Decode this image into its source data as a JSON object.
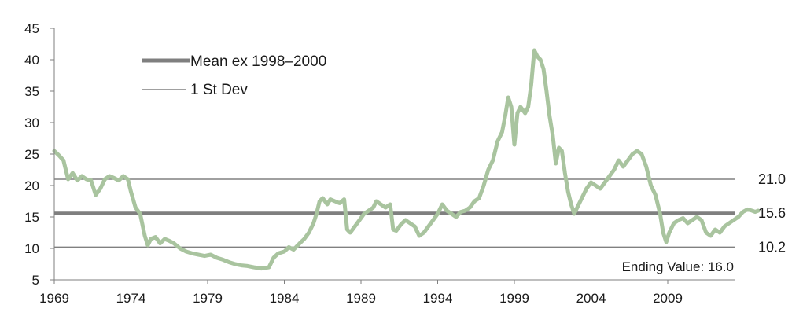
{
  "chart_data": {
    "type": "line",
    "title": "",
    "xlabel": "",
    "ylabel": "",
    "xlim": [
      1969,
      2013.8
    ],
    "ylim": [
      5,
      45
    ],
    "y_ticks": [
      5,
      10,
      15,
      20,
      25,
      30,
      35,
      40,
      45
    ],
    "x_ticks": [
      1969,
      1974,
      1979,
      1984,
      1989,
      1994,
      1999,
      2004,
      2009
    ],
    "grid": false,
    "legend_position": "top-left",
    "legend": [
      {
        "label": "Mean ex 1998–2000",
        "style": "thick-gray-line"
      },
      {
        "label": "1 St Dev",
        "style": "thin-gray-line"
      }
    ],
    "reference_lines": [
      {
        "name": "mean",
        "value": 15.6,
        "label": "15.6",
        "color": "#7f7f7f",
        "width": "thick"
      },
      {
        "name": "plus-1-sd",
        "value": 21.0,
        "label": "21.0",
        "color": "#808080",
        "width": "thin"
      },
      {
        "name": "minus-1-sd",
        "value": 10.2,
        "label": "10.2",
        "color": "#808080",
        "width": "thin"
      }
    ],
    "annotation": "Ending Value: 16.0",
    "series": [
      {
        "color": "#a9c49f",
        "points": [
          [
            1969.0,
            25.5
          ],
          [
            1969.3,
            24.8
          ],
          [
            1969.6,
            24.0
          ],
          [
            1969.9,
            21.0
          ],
          [
            1970.2,
            22.0
          ],
          [
            1970.5,
            20.8
          ],
          [
            1970.8,
            21.5
          ],
          [
            1971.1,
            21.0
          ],
          [
            1971.4,
            20.8
          ],
          [
            1971.7,
            18.5
          ],
          [
            1972.0,
            19.5
          ],
          [
            1972.3,
            21.0
          ],
          [
            1972.6,
            21.5
          ],
          [
            1972.9,
            21.2
          ],
          [
            1973.2,
            20.8
          ],
          [
            1973.5,
            21.5
          ],
          [
            1973.8,
            21.0
          ],
          [
            1974.0,
            19.0
          ],
          [
            1974.3,
            16.5
          ],
          [
            1974.6,
            15.5
          ],
          [
            1974.9,
            12.0
          ],
          [
            1975.1,
            10.5
          ],
          [
            1975.3,
            11.5
          ],
          [
            1975.6,
            11.8
          ],
          [
            1975.9,
            10.8
          ],
          [
            1976.2,
            11.5
          ],
          [
            1976.5,
            11.2
          ],
          [
            1976.8,
            10.8
          ],
          [
            1977.2,
            10.0
          ],
          [
            1977.6,
            9.5
          ],
          [
            1978.0,
            9.2
          ],
          [
            1978.4,
            9.0
          ],
          [
            1978.8,
            8.8
          ],
          [
            1979.2,
            9.0
          ],
          [
            1979.6,
            8.5
          ],
          [
            1980.0,
            8.2
          ],
          [
            1980.4,
            7.8
          ],
          [
            1980.8,
            7.5
          ],
          [
            1981.2,
            7.3
          ],
          [
            1981.6,
            7.2
          ],
          [
            1982.0,
            7.0
          ],
          [
            1982.5,
            6.8
          ],
          [
            1983.0,
            7.0
          ],
          [
            1983.3,
            8.5
          ],
          [
            1983.6,
            9.2
          ],
          [
            1984.0,
            9.5
          ],
          [
            1984.3,
            10.2
          ],
          [
            1984.6,
            9.8
          ],
          [
            1985.0,
            10.8
          ],
          [
            1985.3,
            11.5
          ],
          [
            1985.6,
            12.5
          ],
          [
            1985.9,
            14.0
          ],
          [
            1986.1,
            15.5
          ],
          [
            1986.3,
            17.5
          ],
          [
            1986.5,
            18.0
          ],
          [
            1986.8,
            17.0
          ],
          [
            1987.0,
            17.8
          ],
          [
            1987.3,
            17.5
          ],
          [
            1987.6,
            17.2
          ],
          [
            1987.9,
            17.8
          ],
          [
            1988.1,
            13.0
          ],
          [
            1988.3,
            12.5
          ],
          [
            1988.6,
            13.5
          ],
          [
            1988.9,
            14.5
          ],
          [
            1989.2,
            15.5
          ],
          [
            1989.5,
            16.0
          ],
          [
            1989.8,
            16.5
          ],
          [
            1990.0,
            17.5
          ],
          [
            1990.3,
            17.0
          ],
          [
            1990.6,
            16.5
          ],
          [
            1990.9,
            17.0
          ],
          [
            1991.1,
            13.0
          ],
          [
            1991.3,
            12.8
          ],
          [
            1991.6,
            13.8
          ],
          [
            1991.9,
            14.5
          ],
          [
            1992.2,
            14.0
          ],
          [
            1992.5,
            13.5
          ],
          [
            1992.8,
            12.0
          ],
          [
            1993.1,
            12.5
          ],
          [
            1993.4,
            13.5
          ],
          [
            1993.7,
            14.5
          ],
          [
            1994.0,
            15.5
          ],
          [
            1994.3,
            17.0
          ],
          [
            1994.6,
            16.0
          ],
          [
            1994.9,
            15.5
          ],
          [
            1995.2,
            15.0
          ],
          [
            1995.5,
            15.8
          ],
          [
            1995.8,
            16.0
          ],
          [
            1996.1,
            16.5
          ],
          [
            1996.4,
            17.5
          ],
          [
            1996.7,
            18.0
          ],
          [
            1997.0,
            20.0
          ],
          [
            1997.3,
            22.5
          ],
          [
            1997.6,
            24.0
          ],
          [
            1997.9,
            27.0
          ],
          [
            1998.2,
            28.5
          ],
          [
            1998.4,
            31.0
          ],
          [
            1998.6,
            34.0
          ],
          [
            1998.8,
            32.5
          ],
          [
            1999.0,
            26.5
          ],
          [
            1999.2,
            31.5
          ],
          [
            1999.4,
            32.5
          ],
          [
            1999.7,
            31.5
          ],
          [
            1999.9,
            32.5
          ],
          [
            2000.1,
            36.0
          ],
          [
            2000.3,
            41.5
          ],
          [
            2000.5,
            40.5
          ],
          [
            2000.7,
            40.0
          ],
          [
            2000.9,
            38.5
          ],
          [
            2001.1,
            35.0
          ],
          [
            2001.3,
            31.0
          ],
          [
            2001.5,
            28.0
          ],
          [
            2001.7,
            23.5
          ],
          [
            2001.9,
            26.0
          ],
          [
            2002.1,
            25.5
          ],
          [
            2002.3,
            22.0
          ],
          [
            2002.5,
            19.0
          ],
          [
            2002.7,
            17.0
          ],
          [
            2002.9,
            15.5
          ],
          [
            2003.1,
            16.5
          ],
          [
            2003.4,
            18.0
          ],
          [
            2003.7,
            19.5
          ],
          [
            2004.0,
            20.5
          ],
          [
            2004.3,
            20.0
          ],
          [
            2004.6,
            19.5
          ],
          [
            2004.9,
            20.5
          ],
          [
            2005.2,
            21.5
          ],
          [
            2005.5,
            22.5
          ],
          [
            2005.8,
            24.0
          ],
          [
            2006.1,
            23.0
          ],
          [
            2006.4,
            24.0
          ],
          [
            2006.7,
            25.0
          ],
          [
            2007.0,
            25.5
          ],
          [
            2007.3,
            25.0
          ],
          [
            2007.6,
            23.0
          ],
          [
            2007.9,
            20.0
          ],
          [
            2008.2,
            18.5
          ],
          [
            2008.5,
            15.5
          ],
          [
            2008.7,
            12.5
          ],
          [
            2008.9,
            11.0
          ],
          [
            2009.1,
            12.5
          ],
          [
            2009.4,
            14.0
          ],
          [
            2009.7,
            14.5
          ],
          [
            2010.0,
            14.8
          ],
          [
            2010.3,
            14.0
          ],
          [
            2010.6,
            14.5
          ],
          [
            2010.9,
            15.0
          ],
          [
            2011.2,
            14.5
          ],
          [
            2011.5,
            12.5
          ],
          [
            2011.8,
            12.0
          ],
          [
            2012.1,
            13.0
          ],
          [
            2012.4,
            12.5
          ],
          [
            2012.7,
            13.5
          ],
          [
            2013.0,
            14.0
          ],
          [
            2013.3,
            14.5
          ],
          [
            2013.6,
            15.0
          ],
          [
            2013.9,
            15.8
          ],
          [
            2014.2,
            16.2
          ],
          [
            2014.5,
            16.0
          ],
          [
            2014.7,
            15.8
          ],
          [
            2014.9,
            16.0
          ]
        ]
      }
    ]
  }
}
